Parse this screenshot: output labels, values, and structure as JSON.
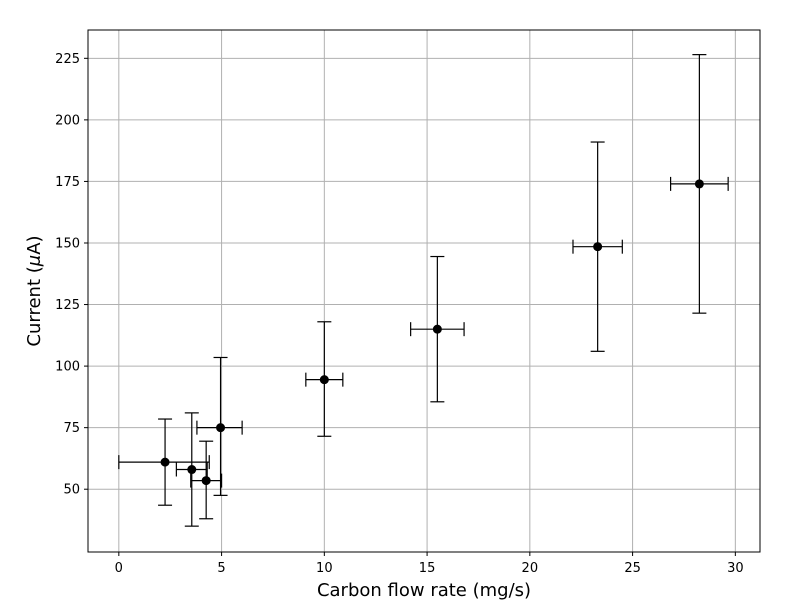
{
  "chart_data": {
    "type": "scatter",
    "title": "",
    "xlabel": "Carbon flow rate (mg/s)",
    "ylabel": "Current (μA)",
    "ylabel_main": "Current (",
    "ylabel_mu": "μ",
    "ylabel_tail": "A)",
    "xlim": [
      -1.5,
      31.2
    ],
    "ylim": [
      24.5,
      236.5
    ],
    "xticks": [
      0,
      5,
      10,
      15,
      20,
      25,
      30
    ],
    "xtick_labels": [
      "0",
      "5",
      "10",
      "15",
      "20",
      "25",
      "30"
    ],
    "yticks": [
      50,
      75,
      100,
      125,
      150,
      175,
      200,
      225
    ],
    "ytick_labels": [
      "50",
      "75",
      "100",
      "125",
      "150",
      "175",
      "200",
      "225"
    ],
    "grid": true,
    "marker_color": "#000000",
    "errorbar_color": "#000000",
    "grid_color": "#b0b0b0",
    "points": [
      {
        "x": 2.25,
        "y": 61.0,
        "xerr_low": 0.0,
        "xerr_high": 4.4,
        "yerr_low": 43.5,
        "yerr_high": 78.5
      },
      {
        "x": 3.55,
        "y": 58.0,
        "xerr_low": 2.8,
        "xerr_high": 4.3,
        "yerr_low": 35.0,
        "yerr_high": 81.0
      },
      {
        "x": 4.25,
        "y": 53.5,
        "xerr_low": 3.5,
        "xerr_high": 5.0,
        "yerr_low": 38.0,
        "yerr_high": 69.5
      },
      {
        "x": 4.95,
        "y": 75.0,
        "xerr_low": 3.8,
        "xerr_high": 6.0,
        "yerr_low": 47.5,
        "yerr_high": 103.5
      },
      {
        "x": 10.0,
        "y": 94.5,
        "xerr_low": 9.1,
        "xerr_high": 10.9,
        "yerr_low": 71.5,
        "yerr_high": 118.0
      },
      {
        "x": 15.5,
        "y": 115.0,
        "xerr_low": 14.2,
        "xerr_high": 16.8,
        "yerr_low": 85.5,
        "yerr_high": 144.5
      },
      {
        "x": 23.3,
        "y": 148.5,
        "xerr_low": 22.1,
        "xerr_high": 24.5,
        "yerr_low": 106.0,
        "yerr_high": 191.0
      },
      {
        "x": 28.25,
        "y": 174.0,
        "xerr_low": 26.85,
        "xerr_high": 29.65,
        "yerr_low": 121.5,
        "yerr_high": 226.5
      }
    ]
  }
}
